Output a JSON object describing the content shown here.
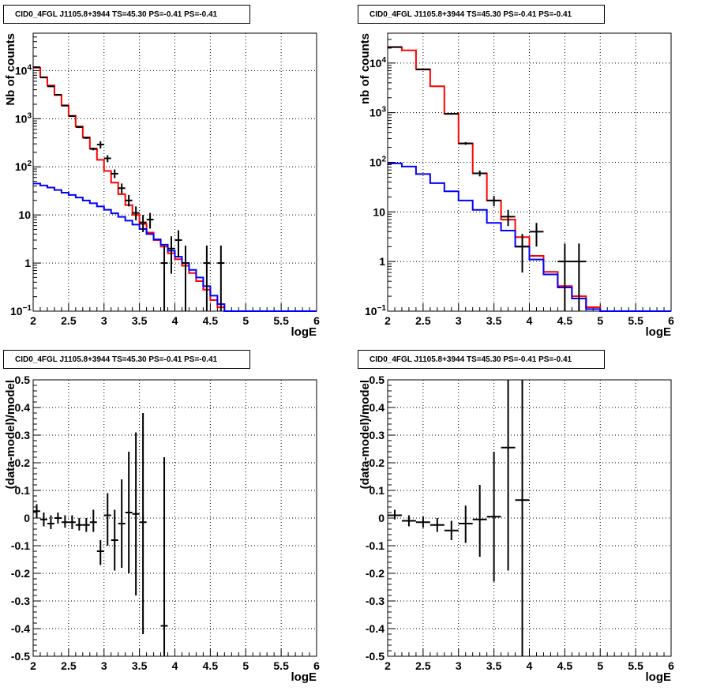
{
  "colors": {
    "data": "#000000",
    "total_model": "#ff0000",
    "component_model": "#0000ff",
    "frame": "#000000",
    "grid": "#000000"
  },
  "chart_data": [
    {
      "type": "line",
      "title": "CID0_4FGL J1105.8+3944 TS=45.30 PS=-0.41 PS=-0.41",
      "xlabel": "logE",
      "ylabel": "Nb of counts",
      "xlim": [
        2,
        6
      ],
      "ylim": [
        0.1,
        60000
      ],
      "yscale": "log",
      "grid": true,
      "x_ticks": [
        "2",
        "2.5",
        "3",
        "3.5",
        "4",
        "4.5",
        "5",
        "5.5",
        "6"
      ],
      "y_ticks": [
        {
          "v": 0.1,
          "b": "10",
          "e": "−1"
        },
        {
          "v": 1,
          "b": "1",
          "e": ""
        },
        {
          "v": 10,
          "b": "10",
          "e": ""
        },
        {
          "v": 100,
          "b": "10",
          "e": "2"
        },
        {
          "v": 1000,
          "b": "10",
          "e": "3"
        },
        {
          "v": 10000,
          "b": "10",
          "e": "4"
        }
      ],
      "bin_edges": [
        2,
        2.1,
        2.2,
        2.3,
        2.4,
        2.5,
        2.6,
        2.7,
        2.8,
        2.9,
        3.0,
        3.1,
        3.2,
        3.3,
        3.4,
        3.5,
        3.6,
        3.7,
        3.8,
        3.9,
        4.0,
        4.1,
        4.2,
        4.3,
        4.4,
        4.5,
        4.6,
        4.7,
        4.8,
        4.9,
        5.0,
        5.1,
        5.2,
        5.3,
        5.4,
        5.5,
        5.6,
        5.7,
        5.8,
        5.9,
        6.0
      ],
      "series": [
        {
          "values": [
            11500,
            7300,
            4900,
            3100,
            1900,
            1150,
            690,
            410,
            240,
            140,
            82,
            47,
            27,
            16,
            10,
            6.5,
            4.3,
            3,
            2.2,
            1.6,
            1.2,
            0.88,
            0.62,
            0.42,
            0.28,
            0.17,
            0.12,
            0.1,
            0.1,
            0.1,
            0.1,
            0.1,
            0.1,
            0.1,
            0.1,
            0.1,
            0.1,
            0.1,
            0.1,
            0.1
          ]
        },
        {
          "values": [
            45,
            41,
            37,
            33,
            29,
            26,
            23,
            20,
            17.5,
            15,
            12.8,
            10.8,
            9.1,
            7.6,
            6.3,
            5.1,
            4.0,
            3.1,
            2.4,
            1.8,
            1.35,
            1.0,
            0.72,
            0.5,
            0.33,
            0.21,
            0.14,
            0.1,
            0.1,
            0.1,
            0.1,
            0.1,
            0.1,
            0.1,
            0.1,
            0.1,
            0.1,
            0.1,
            0.1,
            0.1
          ]
        }
      ],
      "points": [
        {
          "x": 2.05,
          "y": 11800,
          "ylo": 11600,
          "yhi": 12000
        },
        {
          "x": 2.15,
          "y": 7200,
          "ylo": 7050,
          "yhi": 7350
        },
        {
          "x": 2.25,
          "y": 4700,
          "ylo": 4580,
          "yhi": 4820
        },
        {
          "x": 2.35,
          "y": 3150,
          "ylo": 3060,
          "yhi": 3240
        },
        {
          "x": 2.45,
          "y": 1870,
          "ylo": 1810,
          "yhi": 1930
        },
        {
          "x": 2.55,
          "y": 1130,
          "ylo": 1090,
          "yhi": 1170
        },
        {
          "x": 2.65,
          "y": 670,
          "ylo": 640,
          "yhi": 700
        },
        {
          "x": 2.75,
          "y": 400,
          "ylo": 380,
          "yhi": 420
        },
        {
          "x": 2.85,
          "y": 235,
          "ylo": 220,
          "yhi": 250
        },
        {
          "x": 2.95,
          "y": 290,
          "ylo": 240,
          "yhi": 340
        },
        {
          "x": 3.05,
          "y": 150,
          "ylo": 125,
          "yhi": 175
        },
        {
          "x": 3.15,
          "y": 72,
          "ylo": 58,
          "yhi": 88
        },
        {
          "x": 3.25,
          "y": 36,
          "ylo": 28,
          "yhi": 45
        },
        {
          "x": 3.35,
          "y": 20,
          "ylo": 15,
          "yhi": 26
        },
        {
          "x": 3.45,
          "y": 11,
          "ylo": 7.7,
          "yhi": 15
        },
        {
          "x": 3.55,
          "y": 7,
          "ylo": 4.4,
          "yhi": 10
        },
        {
          "x": 3.65,
          "y": 8,
          "ylo": 5.2,
          "yhi": 11
        },
        {
          "x": 3.85,
          "y": 1,
          "ylo": 0.1,
          "yhi": 2.3
        },
        {
          "x": 3.95,
          "y": 2,
          "ylo": 0.6,
          "yhi": 3.6
        },
        {
          "x": 4.05,
          "y": 3,
          "ylo": 1.3,
          "yhi": 4.8
        },
        {
          "x": 4.15,
          "y": 1,
          "ylo": 0.1,
          "yhi": 2.3
        },
        {
          "x": 4.45,
          "y": 1,
          "ylo": 0.1,
          "yhi": 2.3
        },
        {
          "x": 4.65,
          "y": 1,
          "ylo": 0.1,
          "yhi": 2.3
        }
      ]
    },
    {
      "type": "line",
      "title": "CID0_4FGL J1105.8+3944 TS=45.30 PS=-0.41 PS=-0.41",
      "xlabel": "logE",
      "ylabel": "nb of counts",
      "xlim": [
        2,
        6
      ],
      "ylim": [
        0.1,
        40000
      ],
      "yscale": "log",
      "grid": true,
      "x_ticks": [
        "2",
        "2.5",
        "3",
        "3.5",
        "4",
        "4.5",
        "5",
        "5.5",
        "6"
      ],
      "y_ticks": [
        {
          "v": 0.1,
          "b": "10",
          "e": "−1"
        },
        {
          "v": 1,
          "b": "1",
          "e": ""
        },
        {
          "v": 10,
          "b": "10",
          "e": ""
        },
        {
          "v": 100,
          "b": "10",
          "e": "2"
        },
        {
          "v": 1000,
          "b": "10",
          "e": "3"
        },
        {
          "v": 10000,
          "b": "10",
          "e": "4"
        }
      ],
      "bin_edges": [
        2,
        2.2,
        2.4,
        2.6,
        2.8,
        3.0,
        3.2,
        3.4,
        3.6,
        3.8,
        4.0,
        4.2,
        4.4,
        4.6,
        4.8,
        5.0,
        5.2,
        5.4,
        5.6,
        5.8,
        6.0
      ],
      "series": [
        {
          "values": [
            21000,
            18000,
            7500,
            3400,
            950,
            240,
            60,
            17,
            7,
            3.1,
            1.3,
            0.62,
            0.32,
            0.2,
            0.12,
            0.1,
            0.1,
            0.1,
            0.1,
            0.1
          ]
        },
        {
          "values": [
            95,
            82,
            58,
            38,
            26,
            17,
            11,
            6,
            4.2,
            2,
            1.1,
            0.55,
            0.3,
            0.18,
            0.11,
            0.1,
            0.1,
            0.1,
            0.1,
            0.1
          ]
        }
      ],
      "points": [
        {
          "x": 2.1,
          "y": 21000,
          "ylo": 20800,
          "yhi": 21200
        },
        {
          "x": 2.5,
          "y": 7400,
          "ylo": 7250,
          "yhi": 7550
        },
        {
          "x": 2.9,
          "y": 950,
          "ylo": 910,
          "yhi": 990
        },
        {
          "x": 3.1,
          "y": 240,
          "ylo": 225,
          "yhi": 255
        },
        {
          "x": 3.3,
          "y": 60,
          "ylo": 52,
          "yhi": 68
        },
        {
          "x": 3.5,
          "y": 17,
          "ylo": 13,
          "yhi": 21
        },
        {
          "x": 3.7,
          "y": 8,
          "ylo": 5.2,
          "yhi": 11
        },
        {
          "x": 3.9,
          "y": 2,
          "ylo": 0.6,
          "yhi": 3.6
        },
        {
          "x": 4.1,
          "y": 4,
          "ylo": 2,
          "yhi": 6
        },
        {
          "x": 4.5,
          "y": 1,
          "ylo": 0.1,
          "yhi": 2.3
        },
        {
          "x": 4.7,
          "y": 1,
          "ylo": 0.1,
          "yhi": 2.3
        }
      ]
    },
    {
      "type": "scatter",
      "title": "CID0_4FGL J1105.8+3944 TS=45.30 PS=-0.41 PS=-0.41",
      "xlabel": "logE",
      "ylabel": "(data-model)/model",
      "xlim": [
        2,
        6
      ],
      "ylim": [
        -0.5,
        0.5
      ],
      "yscale": "linear",
      "grid": true,
      "x_ticks": [
        "2",
        "2.5",
        "3",
        "3.5",
        "4",
        "4.5",
        "5",
        "5.5",
        "6"
      ],
      "y_ticks": [
        "-0.5",
        "-0.4",
        "-0.3",
        "-0.2",
        "-0.1",
        "0",
        "0.1",
        "0.2",
        "0.3",
        "0.4",
        "0.5"
      ],
      "points": [
        {
          "x": 2.05,
          "y": 0.025,
          "ylo": 0.0,
          "yhi": 0.05
        },
        {
          "x": 2.15,
          "y": -0.005,
          "ylo": -0.03,
          "yhi": 0.02
        },
        {
          "x": 2.25,
          "y": -0.02,
          "ylo": -0.04,
          "yhi": 0.01
        },
        {
          "x": 2.35,
          "y": 0.0,
          "ylo": -0.02,
          "yhi": 0.02
        },
        {
          "x": 2.45,
          "y": -0.015,
          "ylo": -0.035,
          "yhi": 0.01
        },
        {
          "x": 2.55,
          "y": -0.015,
          "ylo": -0.04,
          "yhi": 0.01
        },
        {
          "x": 2.65,
          "y": -0.025,
          "ylo": -0.045,
          "yhi": 0.0
        },
        {
          "x": 2.75,
          "y": -0.025,
          "ylo": -0.05,
          "yhi": 0.0
        },
        {
          "x": 2.85,
          "y": -0.015,
          "ylo": -0.05,
          "yhi": 0.03
        },
        {
          "x": 2.95,
          "y": -0.12,
          "ylo": -0.17,
          "yhi": -0.08
        },
        {
          "x": 3.05,
          "y": 0.01,
          "ylo": -0.1,
          "yhi": 0.09
        },
        {
          "x": 3.15,
          "y": -0.08,
          "ylo": -0.19,
          "yhi": 0.03
        },
        {
          "x": 3.25,
          "y": -0.02,
          "ylo": -0.18,
          "yhi": 0.14
        },
        {
          "x": 3.35,
          "y": 0.02,
          "ylo": -0.2,
          "yhi": 0.24
        },
        {
          "x": 3.45,
          "y": 0.015,
          "ylo": -0.28,
          "yhi": 0.31
        },
        {
          "x": 3.55,
          "y": -0.015,
          "ylo": -0.42,
          "yhi": 0.38
        },
        {
          "x": 3.85,
          "y": -0.39,
          "ylo": -0.5,
          "yhi": 0.22
        }
      ]
    },
    {
      "type": "scatter",
      "title": "CID0_4FGL J1105.8+3944 TS=45.30 PS=-0.41 PS=-0.41",
      "xlabel": "logE",
      "ylabel": "(data-model)/model",
      "xlim": [
        2,
        6
      ],
      "ylim": [
        -0.5,
        0.5
      ],
      "yscale": "linear",
      "grid": true,
      "x_ticks": [
        "2",
        "2.5",
        "3",
        "3.5",
        "4",
        "4.5",
        "5",
        "5.5",
        "6"
      ],
      "y_ticks": [
        "-0.5",
        "-0.4",
        "-0.3",
        "-0.2",
        "-0.1",
        "0",
        "0.1",
        "0.2",
        "0.3",
        "0.4",
        "0.5"
      ],
      "points": [
        {
          "x": 2.1,
          "y": 0.01,
          "ylo": -0.005,
          "yhi": 0.03
        },
        {
          "x": 2.3,
          "y": -0.01,
          "ylo": -0.03,
          "yhi": 0.01
        },
        {
          "x": 2.5,
          "y": -0.015,
          "ylo": -0.035,
          "yhi": 0.005
        },
        {
          "x": 2.7,
          "y": -0.025,
          "ylo": -0.05,
          "yhi": 0.0
        },
        {
          "x": 2.9,
          "y": -0.045,
          "ylo": -0.08,
          "yhi": -0.01
        },
        {
          "x": 3.1,
          "y": -0.02,
          "ylo": -0.09,
          "yhi": 0.045
        },
        {
          "x": 3.3,
          "y": -0.005,
          "ylo": -0.14,
          "yhi": 0.12
        },
        {
          "x": 3.5,
          "y": 0.005,
          "ylo": -0.23,
          "yhi": 0.24
        },
        {
          "x": 3.7,
          "y": 0.255,
          "ylo": -0.19,
          "yhi": 0.5
        },
        {
          "x": 3.9,
          "y": 0.065,
          "ylo": -0.5,
          "yhi": 0.5
        }
      ]
    }
  ]
}
